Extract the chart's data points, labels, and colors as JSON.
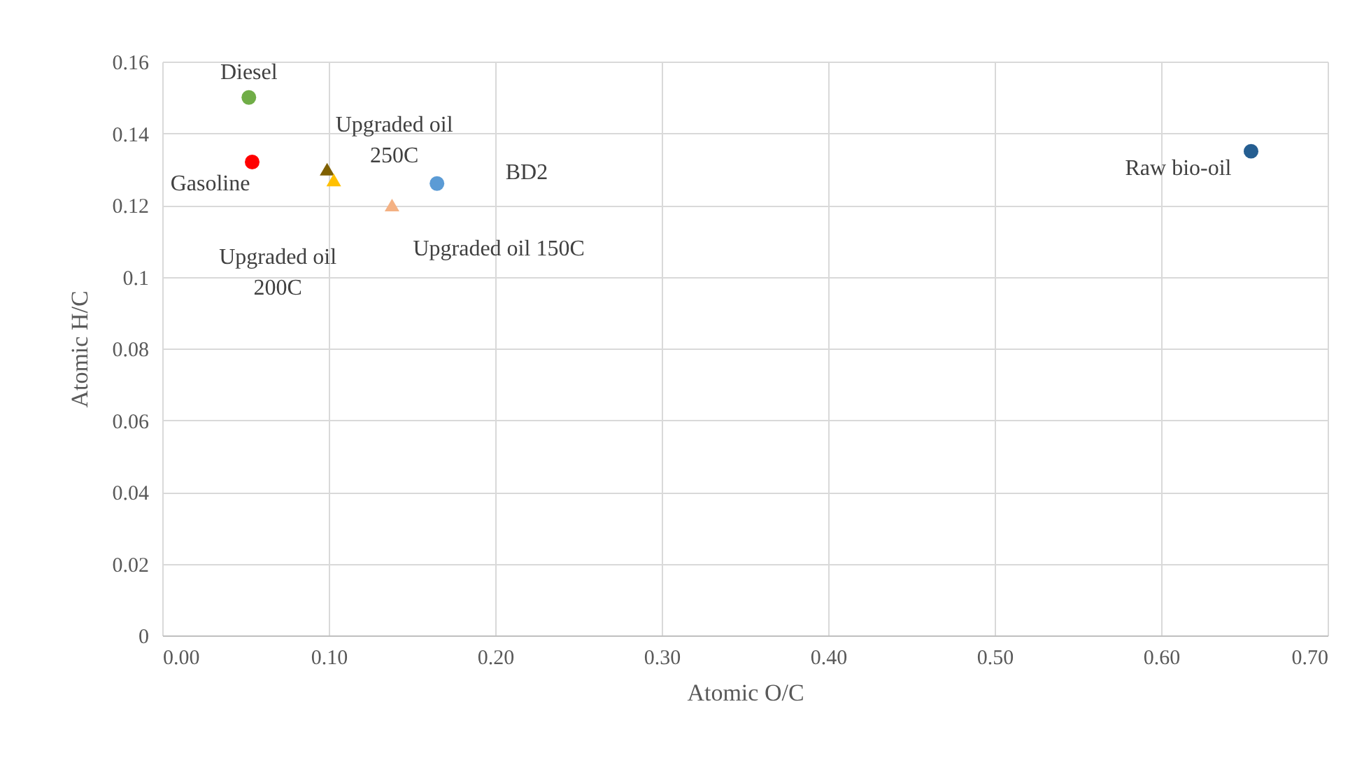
{
  "chart_data": {
    "type": "scatter",
    "xlabel": "Atomic O/C",
    "ylabel": "Atomic H/C",
    "xlim": [
      0,
      0.7
    ],
    "ylim": [
      0,
      0.16
    ],
    "xticks": [
      {
        "value": 0,
        "label": "0.00"
      },
      {
        "value": 0.1,
        "label": "0.10"
      },
      {
        "value": 0.2,
        "label": "0.20"
      },
      {
        "value": 0.3,
        "label": "0.30"
      },
      {
        "value": 0.4,
        "label": "0.40"
      },
      {
        "value": 0.5,
        "label": "0.50"
      },
      {
        "value": 0.6,
        "label": "0.60"
      },
      {
        "value": 0.7,
        "label": "0.70"
      }
    ],
    "yticks": [
      0,
      0.02,
      0.04,
      0.06,
      0.08,
      0.1,
      0.12,
      0.14,
      0.16
    ],
    "grid": true,
    "series": [
      {
        "name": "Diesel",
        "color": "#70ad47",
        "marker": "circle",
        "x": [
          0.052
        ],
        "values": [
          0.15
        ]
      },
      {
        "name": "Gasoline",
        "color": "#ff0000",
        "marker": "circle",
        "x": [
          0.054
        ],
        "values": [
          0.132
        ]
      },
      {
        "name": "Upgraded oil 250C",
        "color": "#7f6000",
        "marker": "triangle",
        "x": [
          0.099
        ],
        "values": [
          0.13
        ]
      },
      {
        "name": "Upgraded oil 200C",
        "color": "#ffc000",
        "marker": "triangle",
        "x": [
          0.103
        ],
        "values": [
          0.127
        ]
      },
      {
        "name": "Upgraded oil 150C",
        "color": "#f4b183",
        "marker": "triangle",
        "x": [
          0.138
        ],
        "values": [
          0.12
        ]
      },
      {
        "name": "BD2",
        "color": "#5b9bd5",
        "marker": "circle",
        "x": [
          0.165
        ],
        "values": [
          0.126
        ]
      },
      {
        "name": "Raw bio-oil",
        "color": "#255e91",
        "marker": "circle",
        "x": [
          0.654
        ],
        "values": [
          0.135
        ]
      }
    ]
  }
}
